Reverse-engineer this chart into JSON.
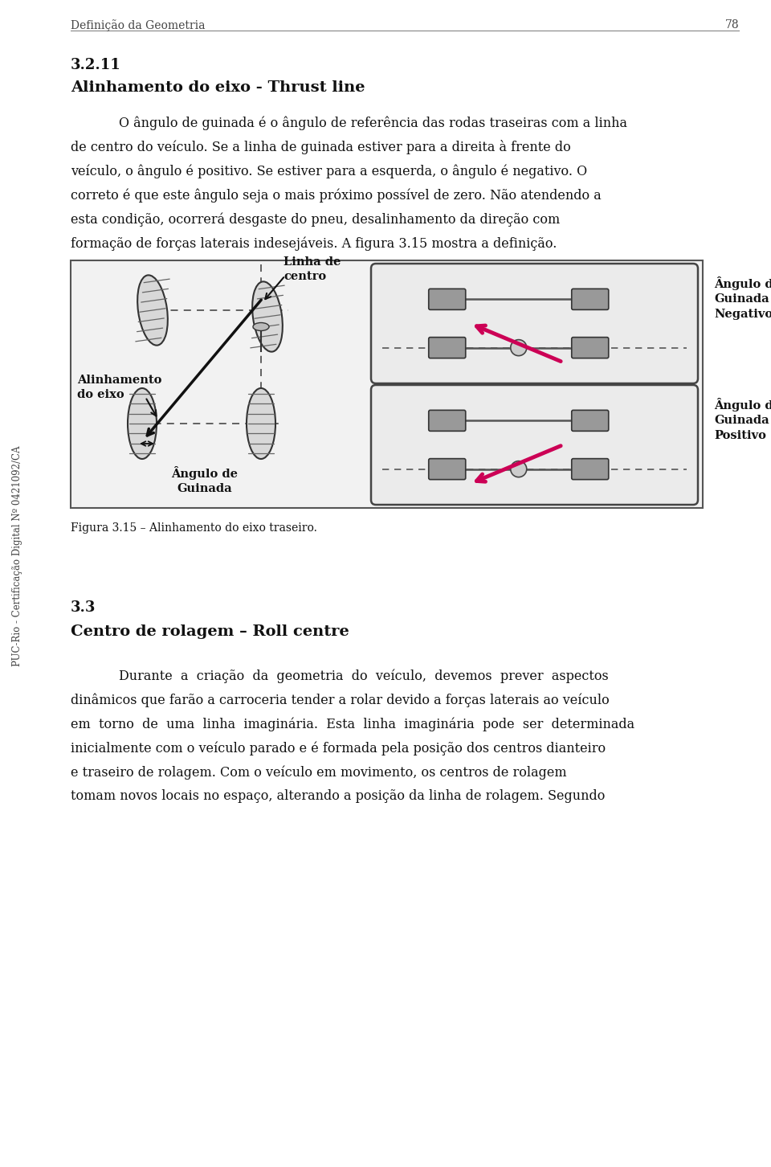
{
  "page_num": "78",
  "header": "Definição da Geometria",
  "section_num": "3.2.11",
  "section_title": "Alinhamento do eixo - Thrust line",
  "para1_lines": [
    "O ângulo de guinada é o ângulo de referência das rodas traseiras com a linha",
    "de centro do veículo. Se a linha de guinada estiver para a direita à frente do",
    "veículo, o ângulo é positivo. Se estiver para a esquerda, o ângulo é negativo. O",
    "correto é que este ângulo seja o mais próximo possível de zero. Não atendendo a",
    "esta condição, ocorrerá desgaste do pneu, desalinhamento da direção com",
    "formação de forças laterais indesejáveis. A figura 3.15 mostra a definição."
  ],
  "fig_caption": "Figura 3.15 – Alinhamento do eixo traseiro.",
  "label_alinhamento": "Alinhamento\ndo eixo",
  "label_linha_centro": "Linha de\ncentro",
  "label_angulo_guinada": "Ângulo de\nGuinada",
  "label_angulo_neg": "Ângulo de\nGuinada\nNegativo",
  "label_angulo_pos": "Ângulo de\nGuinada\nPositivo",
  "section2_num": "3.3",
  "section2_title": "Centro de rolagem – Roll centre",
  "para2_lines": [
    "Durante  a  criação  da  geometria  do  veículo,  devemos  prever  aspectos",
    "dinâmicos que farão a carroceria tender a rolar devido a forças laterais ao veículo",
    "em  torno  de  uma  linha  imaginária.  Esta  linha  imaginária  pode  ser  determinada",
    "inicialmente com o veículo parado e é formada pela posição dos centros dianteiro",
    "e traseiro de rolagem. Com o veículo em movimento, os centros de rolagem",
    "tomam novos locais no espaço, alterando a posição da linha de rolagem. Segundo"
  ],
  "sidebar_text": "PUC-Rio - Certificação Digital Nº 0421092/CA",
  "bg_color": "#ffffff",
  "fig_bg": "#f0f0f0",
  "tire_fill": "#d8d8d8",
  "tire_edge": "#333333",
  "tire_stripe": "#666666",
  "dashed_color": "#555555",
  "diag_color": "#111111",
  "pink_color": "#cc0055",
  "rect_edge": "#444444",
  "gray_tile": "#999999"
}
